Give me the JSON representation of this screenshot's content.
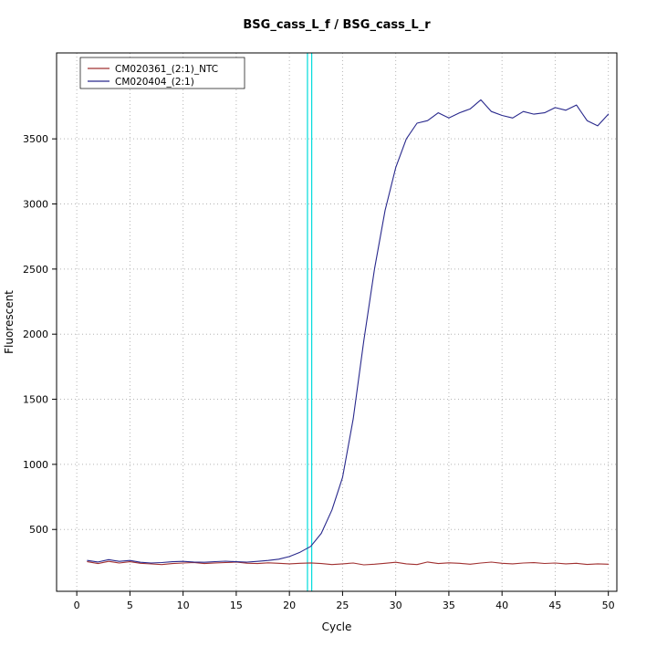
{
  "chart_data": {
    "type": "line",
    "title": "BSG_cass_L_f / BSG_cass_L_r",
    "xlabel": "Cycle",
    "ylabel": "Fluorescent",
    "xlim": [
      -1.9,
      50.8
    ],
    "ylim": [
      25,
      4160
    ],
    "xticks": [
      0,
      5,
      10,
      15,
      20,
      25,
      30,
      35,
      40,
      45,
      50
    ],
    "yticks": [
      500,
      1000,
      1500,
      2000,
      2500,
      3000,
      3500
    ],
    "grid": true,
    "legend_position": "top-left",
    "x": [
      1,
      2,
      3,
      4,
      5,
      6,
      7,
      8,
      9,
      10,
      11,
      12,
      13,
      14,
      15,
      16,
      17,
      18,
      19,
      20,
      21,
      22,
      23,
      24,
      25,
      26,
      27,
      28,
      29,
      30,
      31,
      32,
      33,
      34,
      35,
      36,
      37,
      38,
      39,
      40,
      41,
      42,
      43,
      44,
      45,
      46,
      47,
      48,
      49,
      50
    ],
    "series": [
      {
        "name": "CM020361_(2:1)_NTC",
        "color": "#a03030",
        "values": [
          252,
          238,
          255,
          242,
          252,
          240,
          235,
          230,
          238,
          242,
          246,
          238,
          243,
          246,
          249,
          241,
          238,
          244,
          240,
          236,
          240,
          243,
          238,
          230,
          236,
          242,
          228,
          233,
          240,
          248,
          236,
          230,
          250,
          238,
          244,
          240,
          233,
          242,
          249,
          240,
          236,
          242,
          245,
          239,
          242,
          236,
          240,
          231,
          236,
          233
        ]
      },
      {
        "name": "CM020404_(2:1)",
        "color": "#28288c",
        "values": [
          262,
          250,
          268,
          255,
          262,
          248,
          242,
          246,
          252,
          255,
          250,
          248,
          253,
          256,
          252,
          249,
          255,
          262,
          272,
          292,
          325,
          370,
          470,
          650,
          900,
          1350,
          1950,
          2500,
          2950,
          3280,
          3500,
          3620,
          3640,
          3700,
          3660,
          3700,
          3730,
          3800,
          3710,
          3680,
          3660,
          3710,
          3690,
          3700,
          3740,
          3720,
          3760,
          3640,
          3600,
          3690
        ]
      }
    ],
    "threshold_lines": {
      "color": "#00dcdc",
      "x": [
        21.7,
        22.1
      ]
    }
  }
}
